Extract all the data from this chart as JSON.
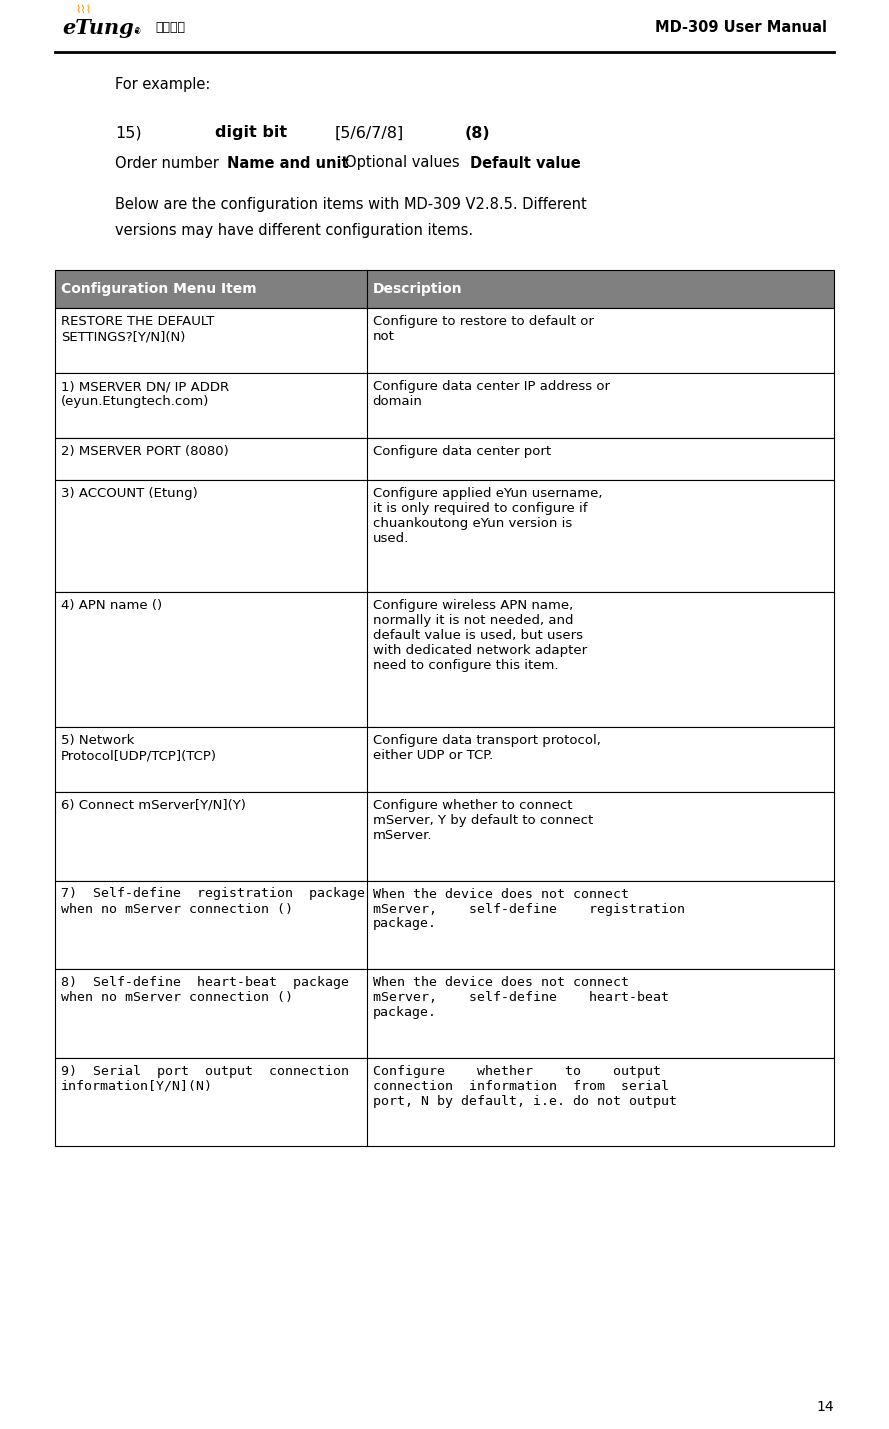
{
  "page_width": 8.89,
  "page_height": 14.29,
  "dpi": 100,
  "bg_color": "#ffffff",
  "header": {
    "chinese_text": "骄唐科技",
    "right_text": "MD-309 User Manual"
  },
  "footer": {
    "page_num": "14"
  },
  "table": {
    "header_bg": "#808080",
    "header_col1": "Configuration Menu Item",
    "header_col2": "Description",
    "rows": [
      {
        "col1": "RESTORE THE DEFAULT\nSETTINGS?[Y/N](N)",
        "col2": "Configure to restore to default or\nnot",
        "mono": false
      },
      {
        "col1": "1) MSERVER DN/ IP ADDR\n(eyun.Etungtech.com)",
        "col2": "Configure data center IP address or\ndomain",
        "mono": false
      },
      {
        "col1": "2) MSERVER PORT (8080)",
        "col2": "Configure data center port",
        "mono": false
      },
      {
        "col1": "3) ACCOUNT (Etung)",
        "col2": "Configure applied eYun username,\nit is only required to configure if\nchuankoutong eYun version is\nused.",
        "mono": false
      },
      {
        "col1": "4) APN name ()",
        "col2": "Configure wireless APN name,\nnormally it is not needed, and\ndefault value is used, but users\nwith dedicated network adapter\nneed to configure this item.",
        "mono": false
      },
      {
        "col1": "5) Network\nProtocol[UDP/TCP](TCP)",
        "col2": "Configure data transport protocol,\neither UDP or TCP.",
        "mono": false
      },
      {
        "col1": "6) Connect mServer[Y/N](Y)",
        "col2": "Configure whether to connect\nmServer, Y by default to connect\nmServer.",
        "mono": false
      },
      {
        "col1": "7)  Self-define  registration  package\nwhen no mServer connection ()",
        "col2": "When the device does not connect\nmServer,    self-define    registration\npackage.",
        "mono": true
      },
      {
        "col1": "8)  Self-define  heart-beat  package\nwhen no mServer connection ()",
        "col2": "When the device does not connect\nmServer,    self-define    heart-beat\npackage.",
        "mono": true
      },
      {
        "col1": "9)  Serial  port  output  connection\ninformation[Y/N](N)",
        "col2": "Configure    whether    to    output\nconnection  information  from  serial\nport, N by default, i.e. do not output",
        "mono": true
      }
    ]
  }
}
